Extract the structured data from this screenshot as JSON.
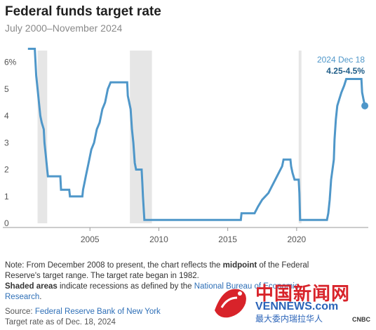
{
  "header": {
    "title": "Federal funds target rate",
    "subtitle": "July 2000–November 2024"
  },
  "annotation": {
    "date": "2024 Dec 18",
    "value": "4.25-4.5%"
  },
  "notes": {
    "line1_prefix": "Note: From December 2008 to present, the chart reflects the ",
    "line1_bold": "midpoint",
    "line1_suffix": " of the Federal",
    "line2": "Reserve's target range. The target rate began in 1982.",
    "line3_bold": "Shaded areas",
    "line3_text": " indicate recessions as defined by the ",
    "line3_link": "National Bureau of Economic",
    "line4_link": "Research",
    "line4_end": ".",
    "source_label": "Source: ",
    "source_link": "Federal Reserve Bank of New York",
    "asof": "Target rate as of Dec. 18, 2024"
  },
  "watermark": {
    "cn": "中国新闻网",
    "en": "VENNEWS.com",
    "sub": "最大委内瑞拉华人",
    "corner": "CNBC"
  },
  "colors": {
    "line": "#4f97c9",
    "recession": "#e6e6e6",
    "baseline": "#9a9a9a",
    "annotation_date": "#4f97c9",
    "annotation_value": "#1f5d88",
    "link": "#2e6fb7"
  },
  "chart_data": {
    "type": "line",
    "x_unit": "year",
    "y_unit": "percent",
    "xlim": [
      2000.0,
      2025.2
    ],
    "ylim": [
      0,
      6.8
    ],
    "x_ticks": [
      2005,
      2010,
      2015,
      2020
    ],
    "y_ticks": [
      0,
      1,
      2,
      3,
      4,
      5,
      6
    ],
    "y_tick_labels": [
      "0",
      "1",
      "2",
      "3",
      "4",
      "5",
      "6%"
    ],
    "grid": false,
    "recessions": [
      [
        2001.2,
        2001.9
      ],
      [
        2007.9,
        2009.5
      ],
      [
        2020.15,
        2020.35
      ]
    ],
    "series": [
      {
        "points": [
          [
            2000.5,
            6.5
          ],
          [
            2001.0,
            6.5
          ],
          [
            2001.05,
            6.0
          ],
          [
            2001.1,
            5.5
          ],
          [
            2001.2,
            5.0
          ],
          [
            2001.3,
            4.5
          ],
          [
            2001.4,
            4.0
          ],
          [
            2001.5,
            3.75
          ],
          [
            2001.65,
            3.5
          ],
          [
            2001.7,
            3.0
          ],
          [
            2001.8,
            2.5
          ],
          [
            2001.9,
            2.0
          ],
          [
            2001.95,
            1.75
          ],
          [
            2002.85,
            1.75
          ],
          [
            2002.9,
            1.25
          ],
          [
            2003.5,
            1.25
          ],
          [
            2003.55,
            1.0
          ],
          [
            2004.45,
            1.0
          ],
          [
            2004.5,
            1.25
          ],
          [
            2004.6,
            1.5
          ],
          [
            2004.7,
            1.75
          ],
          [
            2004.9,
            2.25
          ],
          [
            2005.1,
            2.75
          ],
          [
            2005.3,
            3.0
          ],
          [
            2005.5,
            3.5
          ],
          [
            2005.7,
            3.75
          ],
          [
            2005.9,
            4.25
          ],
          [
            2006.1,
            4.5
          ],
          [
            2006.3,
            5.0
          ],
          [
            2006.5,
            5.25
          ],
          [
            2007.7,
            5.25
          ],
          [
            2007.75,
            4.75
          ],
          [
            2007.85,
            4.5
          ],
          [
            2007.95,
            4.25
          ],
          [
            2008.05,
            3.5
          ],
          [
            2008.15,
            3.0
          ],
          [
            2008.25,
            2.25
          ],
          [
            2008.35,
            2.0
          ],
          [
            2008.75,
            2.0
          ],
          [
            2008.8,
            1.5
          ],
          [
            2008.85,
            1.0
          ],
          [
            2008.95,
            0.125
          ],
          [
            2015.95,
            0.125
          ],
          [
            2016.0,
            0.375
          ],
          [
            2016.95,
            0.375
          ],
          [
            2017.2,
            0.625
          ],
          [
            2017.5,
            0.875
          ],
          [
            2017.95,
            1.125
          ],
          [
            2018.2,
            1.375
          ],
          [
            2018.45,
            1.625
          ],
          [
            2018.7,
            1.875
          ],
          [
            2018.95,
            2.125
          ],
          [
            2019.05,
            2.375
          ],
          [
            2019.55,
            2.375
          ],
          [
            2019.6,
            2.125
          ],
          [
            2019.7,
            1.875
          ],
          [
            2019.85,
            1.625
          ],
          [
            2020.15,
            1.625
          ],
          [
            2020.2,
            1.125
          ],
          [
            2020.25,
            0.125
          ],
          [
            2022.2,
            0.125
          ],
          [
            2022.3,
            0.375
          ],
          [
            2022.4,
            0.875
          ],
          [
            2022.5,
            1.625
          ],
          [
            2022.7,
            2.375
          ],
          [
            2022.75,
            3.125
          ],
          [
            2022.85,
            3.875
          ],
          [
            2022.95,
            4.375
          ],
          [
            2023.1,
            4.625
          ],
          [
            2023.25,
            4.875
          ],
          [
            2023.45,
            5.125
          ],
          [
            2023.6,
            5.375
          ],
          [
            2024.7,
            5.375
          ],
          [
            2024.75,
            4.875
          ],
          [
            2024.85,
            4.625
          ],
          [
            2024.95,
            4.375
          ]
        ]
      }
    ],
    "last_point": [
      2024.95,
      4.375
    ]
  }
}
